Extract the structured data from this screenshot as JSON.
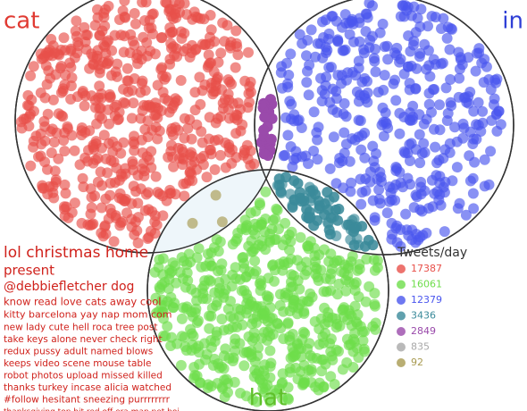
{
  "chart_data": {
    "type": "venn",
    "sets": [
      {
        "name": "cat",
        "color": "#e03a32"
      },
      {
        "name": "in",
        "color": "#2f3fd6"
      },
      {
        "name": "hat",
        "color": "#5fc02a"
      }
    ],
    "legend_title": "Tweets/day",
    "regions": [
      {
        "color": "#e8504a",
        "value": 17387
      },
      {
        "color": "#6ddd4a",
        "value": 16061
      },
      {
        "color": "#4a56ee",
        "value": 12379
      },
      {
        "color": "#3a8a9a",
        "value": 3436
      },
      {
        "color": "#9a4aaa",
        "value": 2849
      },
      {
        "color": "#a8a8a8",
        "value": 835
      },
      {
        "color": "#a89a50",
        "value": 92
      }
    ],
    "word_cloud": [
      "lol christmas home",
      "present",
      "@debbiefletcher dog",
      "know read love cats away cool",
      "kitty barcelona yay nap mom com",
      "new lady cute hell roca tree post",
      "take keys alone never check right",
      "redux pussy adult named blows",
      "keeps video scene mouse table",
      "robot photos upload missed killed",
      "thanks turkey incase alicia watched",
      "#follow hesitant sneezing purrrrrrrr",
      "thanksgiving top bit red off era man pet boi"
    ]
  }
}
